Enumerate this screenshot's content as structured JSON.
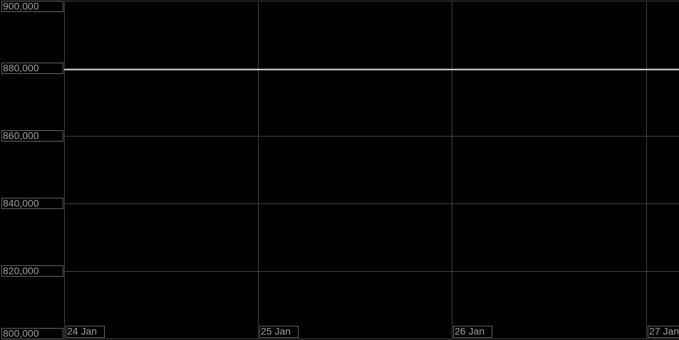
{
  "chart_data": {
    "type": "line",
    "x": [
      24,
      27.17
    ],
    "series": [
      {
        "color": "#ffffff",
        "values": [
          879600,
          879600
        ]
      }
    ],
    "xlim": [
      24,
      27.17
    ],
    "xticks": [
      {
        "value": 24,
        "label": "24 Jan"
      },
      {
        "value": 25,
        "label": "25 Jan"
      },
      {
        "value": 26,
        "label": "26 Jan"
      },
      {
        "value": 27,
        "label": "27 Jan"
      }
    ],
    "ylim": [
      800000,
      900000
    ],
    "yticks": [
      {
        "value": 800000,
        "label": "800,000"
      },
      {
        "value": 820000,
        "label": "820,000"
      },
      {
        "value": 840000,
        "label": "840,000"
      },
      {
        "value": 860000,
        "label": "860,000"
      },
      {
        "value": 880000,
        "label": "880,000"
      },
      {
        "value": 900000,
        "label": "900,000"
      }
    ],
    "grid": true
  }
}
